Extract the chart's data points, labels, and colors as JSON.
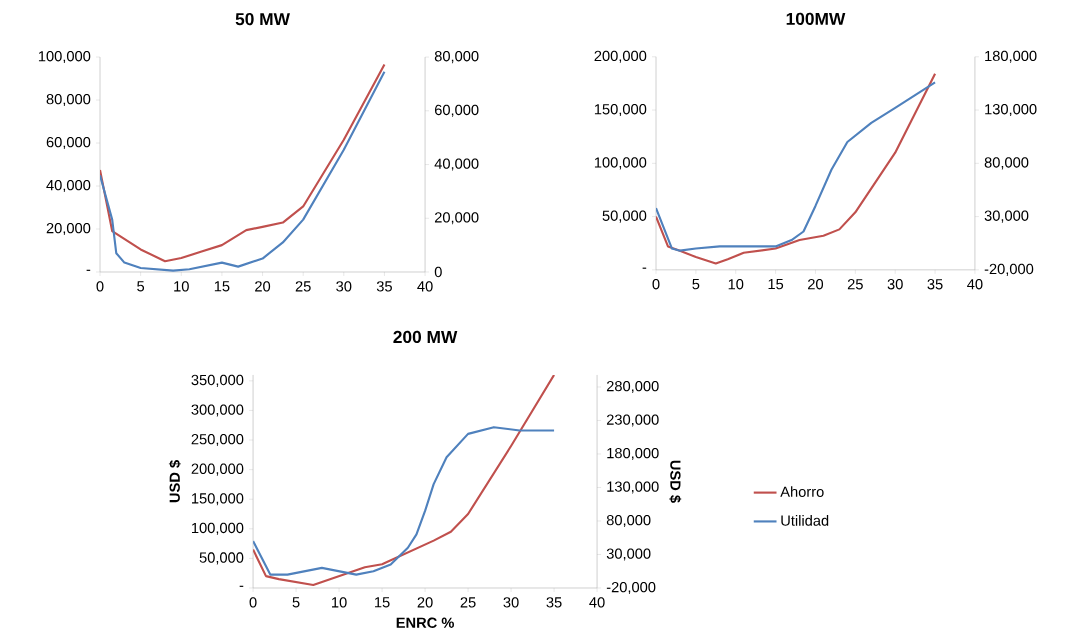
{
  "chart_data": [
    {
      "type": "line",
      "title": "50 MW",
      "xlim": [
        0,
        40
      ],
      "xticks": [
        0,
        5,
        10,
        15,
        20,
        25,
        30,
        35,
        40
      ],
      "ylim": [
        0,
        100000
      ],
      "yticks": [
        {
          "value": 0,
          "label": "-"
        },
        {
          "value": 20000,
          "label": "20,000"
        },
        {
          "value": 40000,
          "label": "40,000"
        },
        {
          "value": 60000,
          "label": "60,000"
        },
        {
          "value": 80000,
          "label": "80,000"
        },
        {
          "value": 100000,
          "label": "100,000"
        }
      ],
      "y2lim": [
        0,
        80000
      ],
      "y2ticks": [
        0,
        {
          "value": 20000,
          "label": "20,000"
        },
        {
          "value": 40000,
          "label": "40,000"
        },
        {
          "value": 60000,
          "label": "60,000"
        },
        {
          "value": 80000,
          "label": "80,000"
        }
      ],
      "series": [
        {
          "color": "#c0504d",
          "x": [
            0,
            1.5,
            5,
            8,
            10,
            12.5,
            15,
            18,
            20,
            22.5,
            25,
            30,
            35
          ],
          "values": [
            47500,
            19000,
            10500,
            5000,
            6500,
            9500,
            12500,
            19500,
            21000,
            23000,
            30500,
            61500,
            96500
          ]
        },
        {
          "color": "#4f81bd",
          "axis": "y2",
          "x": [
            0,
            1.5,
            2,
            3,
            5,
            7,
            9,
            11,
            15,
            17,
            20,
            22.5,
            25,
            30,
            35
          ],
          "values": [
            36000,
            19500,
            7000,
            3500,
            1500,
            1000,
            500,
            1000,
            3500,
            2000,
            5000,
            11000,
            19500,
            45500,
            74500
          ]
        }
      ]
    },
    {
      "type": "line",
      "title": "100MW",
      "xlim": [
        0,
        40
      ],
      "xticks": [
        0,
        5,
        10,
        15,
        20,
        25,
        30,
        35,
        40
      ],
      "ylim": [
        0,
        200000
      ],
      "yticks": [
        {
          "value": 0,
          "label": "-"
        },
        {
          "value": 50000,
          "label": "50,000"
        },
        {
          "value": 100000,
          "label": "100,000"
        },
        {
          "value": 150000,
          "label": "150,000"
        },
        {
          "value": 200000,
          "label": "200,000"
        }
      ],
      "y2lim": [
        -20000,
        180000
      ],
      "y2ticks": [
        {
          "value": -20000,
          "label": "-20,000"
        },
        {
          "value": 30000,
          "label": "30,000"
        },
        {
          "value": 80000,
          "label": "80,000"
        },
        {
          "value": 130000,
          "label": "130,000"
        },
        {
          "value": 180000,
          "label": "180,000"
        }
      ],
      "series": [
        {
          "color": "#c0504d",
          "x": [
            0,
            1.5,
            3,
            5,
            7.5,
            9,
            11,
            15,
            18,
            21,
            23,
            25,
            30,
            35
          ],
          "values": [
            50000,
            22000,
            18000,
            12000,
            6000,
            10000,
            16000,
            20000,
            28000,
            32000,
            38000,
            54000,
            110000,
            184000
          ]
        },
        {
          "color": "#4f81bd",
          "axis": "y2",
          "x": [
            0,
            2,
            3,
            5,
            8,
            12,
            15,
            17,
            18.5,
            20,
            22,
            24,
            27,
            30,
            35
          ],
          "values": [
            38000,
            0,
            -2000,
            0,
            2000,
            2000,
            2000,
            8000,
            16000,
            40000,
            74000,
            100000,
            118000,
            132000,
            156000
          ]
        }
      ]
    },
    {
      "type": "line",
      "title": "200 MW",
      "xlabel": "ENRC %",
      "ylabel": "USD $",
      "y2label": "USD $",
      "legend": "right",
      "xlim": [
        0,
        40
      ],
      "xticks": [
        0,
        5,
        10,
        15,
        20,
        25,
        30,
        35,
        40
      ],
      "ylim": [
        0,
        360000
      ],
      "yticks": [
        {
          "value": 0,
          "label": "-"
        },
        {
          "value": 50000,
          "label": "50,000"
        },
        {
          "value": 100000,
          "label": "100,000"
        },
        {
          "value": 150000,
          "label": "150,000"
        },
        {
          "value": 200000,
          "label": "200,000"
        },
        {
          "value": 250000,
          "label": "250,000"
        },
        {
          "value": 300000,
          "label": "300,000"
        },
        {
          "value": 350000,
          "label": "350,000"
        }
      ],
      "y2lim": [
        -20000,
        298000
      ],
      "y2ticks": [
        {
          "value": -20000,
          "label": "-20,000"
        },
        {
          "value": 30000,
          "label": "30,000"
        },
        {
          "value": 80000,
          "label": "80,000"
        },
        {
          "value": 130000,
          "label": "130,000"
        },
        {
          "value": 180000,
          "label": "180,000"
        },
        {
          "value": 230000,
          "label": "230,000"
        },
        {
          "value": 280000,
          "label": "280,000"
        }
      ],
      "series": [
        {
          "name": "Ahorro",
          "color": "#c0504d",
          "x": [
            0,
            1.5,
            3,
            5,
            7,
            8,
            10,
            13,
            15,
            18,
            21,
            23,
            25,
            30,
            35
          ],
          "values": [
            65000,
            20000,
            15000,
            10000,
            5000,
            10000,
            20000,
            35000,
            40000,
            60000,
            80000,
            95000,
            125000,
            240000,
            360000
          ]
        },
        {
          "name": "Utilidad",
          "color": "#4f81bd",
          "axis": "y2",
          "x": [
            0,
            2,
            4,
            6,
            8,
            10,
            12,
            14,
            16,
            18,
            19,
            20,
            21,
            22.5,
            25,
            28,
            31,
            35
          ],
          "values": [
            50000,
            0,
            0,
            5000,
            10000,
            5000,
            0,
            5000,
            15000,
            40000,
            60000,
            95000,
            135000,
            175000,
            210000,
            220000,
            215000,
            215000
          ]
        }
      ]
    }
  ]
}
